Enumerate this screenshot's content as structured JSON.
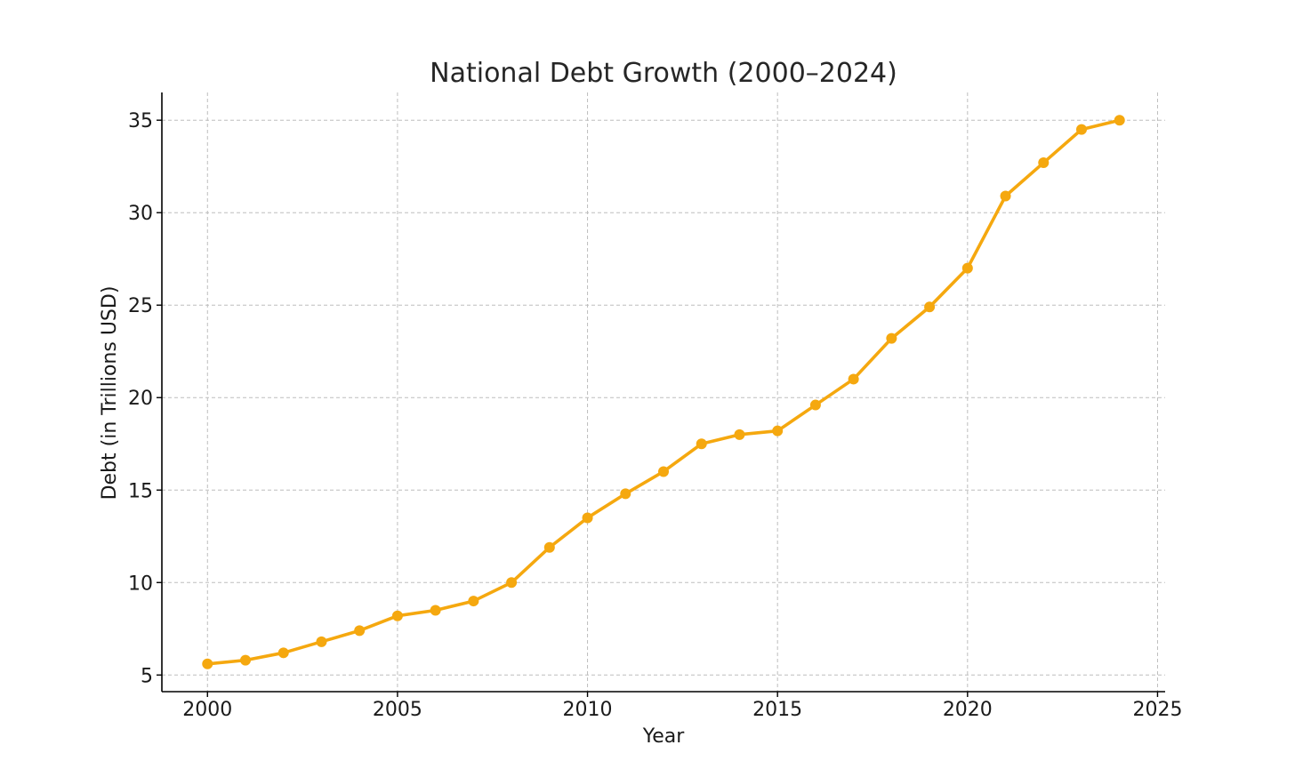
{
  "chart_data": {
    "type": "line",
    "title": "National Debt Growth (2000–2024)",
    "xlabel": "Year",
    "ylabel": "Debt (in Trillions USD)",
    "xlim": [
      1998.8,
      2025.2
    ],
    "ylim": [
      4.1,
      36.5
    ],
    "x_ticks": [
      2000,
      2005,
      2010,
      2015,
      2020,
      2025
    ],
    "y_ticks": [
      5,
      10,
      15,
      20,
      25,
      30,
      35
    ],
    "grid": true,
    "color": "#f5a80f",
    "series": [
      {
        "x": [
          2000,
          2001,
          2002,
          2003,
          2004,
          2005,
          2006,
          2007,
          2008,
          2009,
          2010,
          2011,
          2012,
          2013,
          2014,
          2015,
          2016,
          2017,
          2018,
          2019,
          2020,
          2021,
          2022,
          2023,
          2024
        ],
        "values": [
          5.6,
          5.8,
          6.2,
          6.8,
          7.4,
          8.2,
          8.5,
          9.0,
          10.0,
          11.9,
          13.5,
          14.8,
          16.0,
          17.5,
          18.0,
          18.2,
          19.6,
          21.0,
          23.2,
          24.9,
          27.0,
          30.9,
          32.7,
          34.5,
          35.0
        ]
      }
    ]
  }
}
